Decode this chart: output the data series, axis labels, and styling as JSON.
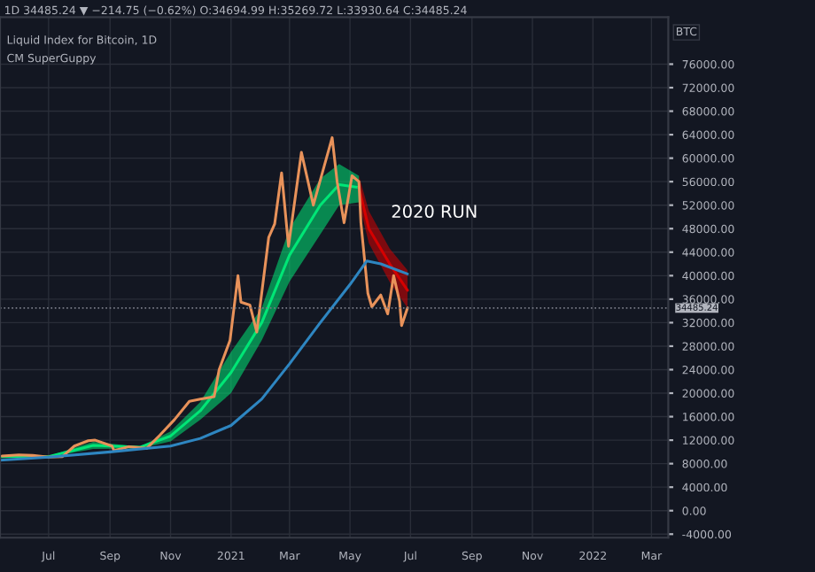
{
  "chart_data": {
    "type": "line",
    "title": "Liquid Index for Bitcoin, 1D",
    "subtitle": "1D 34485.24 ▼ −214.75 (−0.62%) O:34694.99 H:35269.72 L:33930.64 C:34485.24",
    "ylabel": "BTC",
    "annotations": [
      "CM SuperGuppy",
      "2020 RUN"
    ],
    "xlim": [
      "2020-05-13",
      "2022-03-18"
    ],
    "xticks": [
      {
        "value": "2020-07-01",
        "label": "Jul"
      },
      {
        "value": "2020-09-01",
        "label": "Sep"
      },
      {
        "value": "2020-11-01",
        "label": "Nov"
      },
      {
        "value": "2021-01-01",
        "label": "2021"
      },
      {
        "value": "2021-03-01",
        "label": "Mar"
      },
      {
        "value": "2021-05-01",
        "label": "May"
      },
      {
        "value": "2021-07-01",
        "label": "Jul"
      },
      {
        "value": "2021-09-01",
        "label": "Sep"
      },
      {
        "value": "2021-11-01",
        "label": "Nov"
      },
      {
        "value": "2022-01-01",
        "label": "2022"
      },
      {
        "value": "2022-03-01",
        "label": "Mar"
      }
    ],
    "ylim": [
      -4600,
      84000
    ],
    "yticks": [
      {
        "value": -4000,
        "label": "-4000.00"
      },
      {
        "value": 0,
        "label": "0.00"
      },
      {
        "value": 4000,
        "label": "4000.00"
      },
      {
        "value": 8000,
        "label": "8000.00"
      },
      {
        "value": 12000,
        "label": "12000.00"
      },
      {
        "value": 16000,
        "label": "16000.00"
      },
      {
        "value": 20000,
        "label": "20000.00"
      },
      {
        "value": 24000,
        "label": "24000.00"
      },
      {
        "value": 28000,
        "label": "28000.00"
      },
      {
        "value": 32000,
        "label": "32000.00"
      },
      {
        "value": 36000,
        "label": "36000.00"
      },
      {
        "value": 40000,
        "label": "40000.00"
      },
      {
        "value": 44000,
        "label": "44000.00"
      },
      {
        "value": 48000,
        "label": "48000.00"
      },
      {
        "value": 52000,
        "label": "52000.00"
      },
      {
        "value": 56000,
        "label": "56000.00"
      },
      {
        "value": 60000,
        "label": "60000.00"
      },
      {
        "value": 64000,
        "label": "64000.00"
      },
      {
        "value": 68000,
        "label": "68000.00"
      },
      {
        "value": 72000,
        "label": "72000.00"
      },
      {
        "value": 76000,
        "label": "76000.00"
      }
    ],
    "grid": true,
    "legend": false,
    "ref_lines": [
      {
        "axis": "y",
        "value": 34485.24,
        "label": "34485.24",
        "color": "#787b86",
        "line_style": "dotted"
      }
    ],
    "series": [
      {
        "color": "#00e676",
        "x": [
          "2020-05-13",
          "2020-07-01",
          "2020-08-15",
          "2020-10-01",
          "2020-11-01",
          "2020-12-01",
          "2021-01-01",
          "2021-02-01",
          "2021-03-01",
          "2021-04-01",
          "2021-04-20",
          "2021-05-10"
        ],
        "values": [
          9200,
          9200,
          11100,
          10800,
          12700,
          17000,
          23500,
          32000,
          43500,
          52000,
          55500,
          55000
        ],
        "lower": [
          9000,
          9100,
          10500,
          10600,
          11800,
          15500,
          20000,
          29000,
          39000,
          47000,
          52000,
          52500
        ],
        "upper": [
          9400,
          9300,
          11700,
          10900,
          13500,
          18500,
          27000,
          34500,
          48000,
          56500,
          59000,
          57000
        ]
      },
      {
        "color": "#d50000",
        "x": [
          "2021-05-10",
          "2021-05-20",
          "2021-06-10",
          "2021-06-28"
        ],
        "values": [
          55000,
          48000,
          42000,
          37500
        ],
        "lower": [
          52500,
          45500,
          38900,
          34500
        ],
        "upper": [
          57000,
          51000,
          44600,
          40900
        ]
      },
      {
        "color": "#e8925a",
        "x": [
          "2020-05-15",
          "2020-06-01",
          "2020-06-15",
          "2020-07-01",
          "2020-07-15",
          "2020-07-27",
          "2020-08-10",
          "2020-08-17",
          "2020-09-03",
          "2020-09-05",
          "2020-09-20",
          "2020-10-08",
          "2020-10-21",
          "2020-11-05",
          "2020-11-20",
          "2020-12-01",
          "2020-12-15",
          "2020-12-20",
          "2020-12-31",
          "2021-01-08",
          "2021-01-11",
          "2021-01-20",
          "2021-01-27",
          "2021-02-08",
          "2021-02-14",
          "2021-02-21",
          "2021-02-28",
          "2021-03-13",
          "2021-03-25",
          "2021-04-13",
          "2021-04-18",
          "2021-04-25",
          "2021-05-03",
          "2021-05-10",
          "2021-05-12",
          "2021-05-19",
          "2021-05-23",
          "2021-06-01",
          "2021-06-08",
          "2021-06-14",
          "2021-06-20",
          "2021-06-22",
          "2021-06-28"
        ],
        "values": [
          9300,
          9500,
          9400,
          9100,
          9200,
          11000,
          11900,
          12000,
          11000,
          10200,
          10900,
          10600,
          12800,
          15500,
          18600,
          19000,
          19400,
          24000,
          29000,
          40000,
          35500,
          35000,
          30400,
          46500,
          48800,
          57500,
          45000,
          61000,
          52000,
          63500,
          56000,
          49000,
          57000,
          56000,
          49000,
          37000,
          34700,
          36700,
          33500,
          40000,
          35600,
          31500,
          34500
        ]
      },
      {
        "color": "#2e86c1",
        "x": [
          "2020-05-13",
          "2020-07-01",
          "2020-09-01",
          "2020-11-01",
          "2020-12-01",
          "2021-01-01",
          "2021-02-01",
          "2021-03-01",
          "2021-04-01",
          "2021-05-01",
          "2021-05-18",
          "2021-06-01",
          "2021-06-28"
        ],
        "values": [
          8600,
          9100,
          10000,
          11000,
          12300,
          14500,
          19000,
          25000,
          32000,
          38500,
          42500,
          42000,
          40300
        ]
      }
    ]
  }
}
